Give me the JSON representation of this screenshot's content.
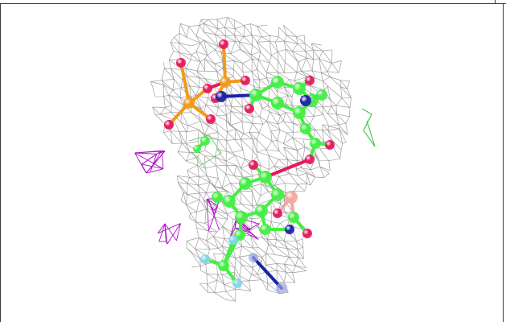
{
  "viewer": {
    "background": "#ffffff",
    "frame_color": "#3a3a3a"
  },
  "density_map": {
    "mesh_color": "#8f8f8f",
    "difference_mesh_color": "#b010c8",
    "positive_mesh_color": "#2fbf2f"
  },
  "molecule": {
    "carbon_color": "#44ee44",
    "oxygen_color": "#e5185e",
    "nitrogen_color": "#1c23a6",
    "phosphorus_color": "#f09a1c",
    "boron_color": "#f2a7a0",
    "fluorine_color": "#7fd8e6",
    "faded_nitrogen_color": "#9fa4e0",
    "faded_carbon_color": "#b8e8b8"
  }
}
